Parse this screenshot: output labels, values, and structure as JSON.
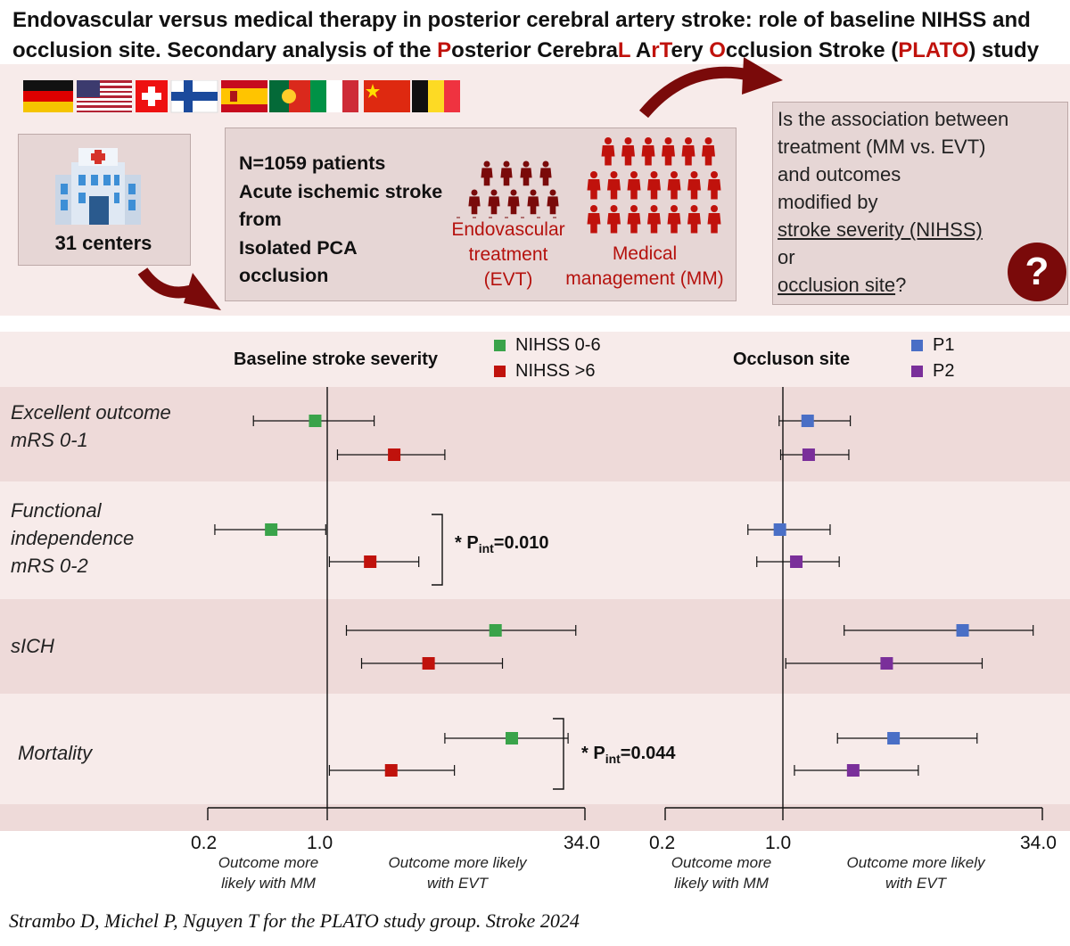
{
  "title": {
    "part1": "Endovascular versus medical therapy in posterior cerebral artery stroke: role of baseline NIHSS and occlusion site. Secondary analysis of the ",
    "P": "P",
    "osterior": "osterior Cerebra",
    "L": "L",
    "space_a": " A",
    "r": "r",
    "T": "T",
    "ery": "ery ",
    "O": "O",
    "cclusion": "cclusion Stroke (",
    "PLATO": "PLATO",
    "end": ") study"
  },
  "centers": {
    "label": "31 centers"
  },
  "patients": {
    "lines": [
      "N=1059 patients",
      "Acute ischemic stroke",
      "from",
      "Isolated PCA",
      "occlusion"
    ],
    "evt_label": [
      "Endovascular",
      "treatment",
      "(EVT)"
    ],
    "mm_label": [
      "Medical",
      "management (MM)"
    ]
  },
  "question": {
    "l1": "Is the association between",
    "l2": "treatment (MM vs. EVT)",
    "l3": "and outcomes",
    "l4": "modified by",
    "l5": "stroke severity (NIHSS)",
    "l6": "or",
    "l7": "occlusion site",
    "l7_end": "?",
    "mark": "?"
  },
  "chart_data": [
    {
      "type": "forest",
      "title": "Baseline stroke severity",
      "scale": "log",
      "axis_ticks": [
        "0.2",
        "1.0",
        "34.0"
      ],
      "axis_notes": {
        "left": [
          "Outcome more",
          "likely with MM"
        ],
        "right": [
          "Outcome more likely",
          "with EVT"
        ]
      },
      "series": [
        {
          "name": "NIHSS 0-6",
          "color": "#3aa34a"
        },
        {
          "name": "NIHSS >6",
          "color": "#c0120c"
        }
      ],
      "rows": [
        {
          "outcome": [
            "Excellent outcome",
            "mRS 0-1"
          ],
          "estimates": [
            [
              0.85,
              0.37,
              1.9
            ],
            [
              2.5,
              1.15,
              5.0
            ]
          ]
        },
        {
          "outcome": [
            "Functional",
            "independence",
            "mRS 0-2"
          ],
          "estimates": [
            [
              0.47,
              0.22,
              0.98
            ],
            [
              1.8,
              1.03,
              3.5
            ]
          ],
          "annotation": {
            "star": "* P",
            "sub": "int",
            "value": "=0.010"
          }
        },
        {
          "outcome": [
            "sICH"
          ],
          "estimates": [
            [
              10.0,
              1.3,
              30.0
            ],
            [
              4.0,
              1.6,
              11.0
            ]
          ]
        },
        {
          "outcome": [
            "Mortality"
          ],
          "estimates": [
            [
              12.5,
              5.0,
              27.0
            ],
            [
              2.4,
              1.03,
              5.7
            ]
          ],
          "annotation": {
            "star": "* P",
            "sub": "int",
            "value": "=0.044"
          }
        }
      ]
    },
    {
      "type": "forest",
      "title": "Occluson site",
      "scale": "log",
      "axis_ticks": [
        "0.2",
        "1.0",
        "34.0"
      ],
      "axis_notes": {
        "left": [
          "Outcome more",
          "likely with MM"
        ],
        "right": [
          "Outcome more likely",
          "with EVT"
        ]
      },
      "series": [
        {
          "name": "P1",
          "color": "#4a6fc6"
        },
        {
          "name": "P2",
          "color": "#7a2f9a"
        }
      ],
      "rows": [
        {
          "outcome": [
            "Excellent outcome",
            "mRS 0-1"
          ],
          "estimates": [
            [
              1.4,
              0.95,
              2.5
            ],
            [
              1.42,
              0.97,
              2.45
            ]
          ]
        },
        {
          "outcome": [
            "Functional",
            "independence",
            "mRS 0-2"
          ],
          "estimates": [
            [
              0.96,
              0.62,
              1.9
            ],
            [
              1.2,
              0.7,
              2.15
            ]
          ]
        },
        {
          "outcome": [
            "sICH"
          ],
          "estimates": [
            [
              11.5,
              2.3,
              30.0
            ],
            [
              4.1,
              1.04,
              15.0
            ]
          ]
        },
        {
          "outcome": [
            "Mortality"
          ],
          "estimates": [
            [
              4.5,
              2.1,
              14.0
            ],
            [
              2.6,
              1.17,
              6.3
            ]
          ]
        }
      ]
    }
  ],
  "citation": "Strambo D, Michel P, Nguyen T for the PLATO study group. Stroke 2024",
  "colors": {
    "dark_red": "#7a0a0a",
    "accent_red": "#c0120c",
    "band": "#eedad9"
  }
}
